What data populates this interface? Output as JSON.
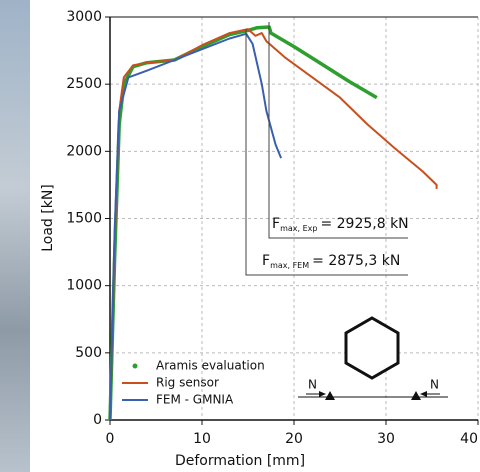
{
  "chart_data": {
    "type": "line",
    "xlabel": "Deformation [mm]",
    "ylabel": "Load [kN]",
    "xlim": [
      0,
      40
    ],
    "xticks": [
      0,
      10,
      20,
      30,
      40
    ],
    "ylim": [
      0,
      3000
    ],
    "yticks": [
      0,
      500,
      1000,
      1500,
      2000,
      2500,
      3000
    ],
    "grid": true,
    "legend": "lower left",
    "series": [
      {
        "name": "Aramis evaluation",
        "color": "#2e9e2e",
        "x": [
          0,
          0.5,
          1,
          1.5,
          2.5,
          4,
          7,
          10,
          13,
          15,
          16,
          17.3,
          17.5,
          20,
          23,
          26,
          29
        ],
        "values": [
          0,
          1200,
          2200,
          2500,
          2630,
          2660,
          2680,
          2780,
          2870,
          2900,
          2920,
          2925.8,
          2880,
          2780,
          2650,
          2520,
          2400
        ]
      },
      {
        "name": "Rig sensor",
        "color": "#c8501e",
        "x": [
          0,
          0.5,
          1,
          1.5,
          2.5,
          4,
          7,
          10,
          13,
          15,
          15.8,
          16.5,
          17,
          19,
          22,
          25,
          28,
          31,
          34,
          35.5,
          35.5
        ],
        "values": [
          0,
          1300,
          2300,
          2550,
          2640,
          2660,
          2680,
          2790,
          2880,
          2910,
          2860,
          2880,
          2820,
          2700,
          2550,
          2400,
          2200,
          2020,
          1850,
          1750,
          1720
        ]
      },
      {
        "name": "FEM - GMNIA",
        "color": "#3a5fb0",
        "x": [
          0,
          0.5,
          1,
          2,
          4,
          7,
          10,
          13,
          14.8,
          15.5,
          16.5,
          17,
          18,
          18.6
        ],
        "values": [
          0,
          1400,
          2300,
          2550,
          2600,
          2680,
          2760,
          2840,
          2875.3,
          2800,
          2500,
          2300,
          2050,
          1950
        ]
      }
    ],
    "annotations": [
      {
        "symbol": "F",
        "subscript": "max, Exp",
        "text": "= 2925,8 kN"
      },
      {
        "symbol": "F",
        "subscript": "max, FEM",
        "text": "= 2875,3 kN"
      }
    ],
    "load_labels": [
      "N",
      "N"
    ]
  }
}
